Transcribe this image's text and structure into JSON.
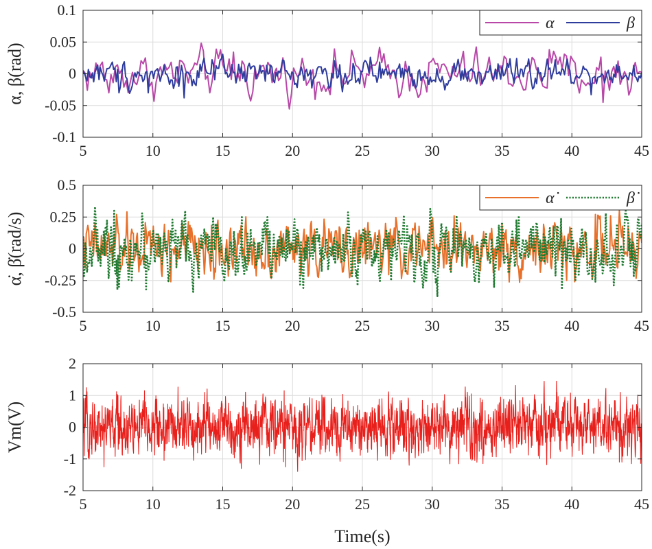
{
  "chart_data": [
    {
      "type": "line",
      "ylabel": "α, β(rad)",
      "xlim": [
        5,
        45
      ],
      "ylim": [
        -0.1,
        0.1
      ],
      "xticks": [
        5,
        10,
        15,
        20,
        25,
        30,
        35,
        40,
        45
      ],
      "yticks": [
        -0.1,
        -0.05,
        0,
        0.05,
        0.1
      ],
      "ytick_labels": [
        "-0.1",
        "-0.05",
        "0",
        "0.05",
        "0.1"
      ],
      "grid": true,
      "legend": "top-right",
      "series": [
        {
          "name": "α",
          "color": "#b847a8",
          "style": "solid",
          "amplitude": 0.02,
          "samples": 260,
          "peaks": [
            [
              6.8,
              -0.03
            ],
            [
              9.4,
              0.025
            ],
            [
              15.8,
              0.034
            ],
            [
              38.4,
              0.038
            ],
            [
              42.3,
              -0.045
            ],
            [
              16.4,
              0.02
            ],
            [
              28.4,
              -0.027
            ],
            [
              43.3,
              0.02
            ]
          ]
        },
        {
          "name": "β",
          "color": "#2e3c9c",
          "style": "solid",
          "amplitude": 0.012,
          "samples": 420,
          "peaks": [
            [
              7.6,
              -0.03
            ],
            [
              9.7,
              -0.03
            ],
            [
              12.2,
              -0.038
            ],
            [
              38.8,
              0.022
            ],
            [
              41.4,
              -0.033
            ]
          ]
        }
      ]
    },
    {
      "type": "line",
      "ylabel": "α̇, β̇(rad/s)",
      "xlim": [
        5,
        45
      ],
      "ylim": [
        -0.5,
        0.5
      ],
      "xticks": [
        5,
        10,
        15,
        20,
        25,
        30,
        35,
        40,
        45
      ],
      "yticks": [
        -0.5,
        -0.25,
        0,
        0.25,
        0.5
      ],
      "ytick_labels": [
        "-0.5",
        "-0.25",
        "0",
        "0.25",
        "0.5"
      ],
      "grid": true,
      "legend": "top-right",
      "series": [
        {
          "name": "α̇",
          "color": "#e8702a",
          "style": "solid",
          "amplitude": 0.12,
          "samples": 700,
          "peaks": [
            [
              7.4,
              0.27
            ],
            [
              11.3,
              -0.26
            ],
            [
              14.4,
              -0.24
            ],
            [
              31.6,
              0.26
            ],
            [
              41.7,
              0.27
            ],
            [
              42.8,
              0.26
            ],
            [
              40.2,
              -0.26
            ]
          ]
        },
        {
          "name": "β̇",
          "color": "#1f7a30",
          "style": "dotted",
          "amplitude": 0.13,
          "samples": 700,
          "peaks": [
            [
              7.2,
              0.3
            ],
            [
              7.6,
              -0.3
            ],
            [
              9.5,
              -0.32
            ],
            [
              11.4,
              0.23
            ],
            [
              14.3,
              0.25
            ],
            [
              16.4,
              0.26
            ],
            [
              36.2,
              0.26
            ],
            [
              39.3,
              -0.32
            ],
            [
              44.0,
              0.25
            ]
          ]
        }
      ]
    },
    {
      "type": "line",
      "ylabel": "Vm(V)",
      "xlabel": "Time(s)",
      "xlim": [
        5,
        45
      ],
      "ylim": [
        -2,
        2
      ],
      "xticks": [
        5,
        10,
        15,
        20,
        25,
        30,
        35,
        40,
        45
      ],
      "yticks": [
        -2,
        -1,
        0,
        1,
        2
      ],
      "ytick_labels": [
        "-2",
        "-1",
        "0",
        "1",
        "2"
      ],
      "grid": true,
      "series": [
        {
          "color": "#e8201c",
          "style": "solid",
          "amplitude": 0.5,
          "samples": 2400,
          "peaks": [
            [
              6.5,
              -1.25
            ],
            [
              7.5,
              1.0
            ],
            [
              9.4,
              1.15
            ],
            [
              13.7,
              1.1
            ],
            [
              19.5,
              -1.25
            ],
            [
              19.4,
              1.15
            ],
            [
              38.9,
              1.45
            ],
            [
              43.4,
              -1.1
            ],
            [
              10.8,
              -1.05
            ],
            [
              32.8,
              1.05
            ]
          ]
        }
      ]
    }
  ]
}
